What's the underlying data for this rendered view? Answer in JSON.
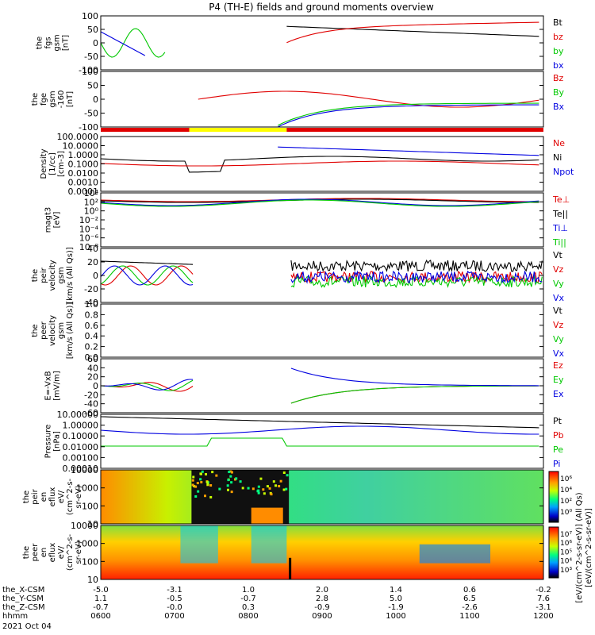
{
  "title": "P4 (TH-E) fields and ground moments overview",
  "colors": {
    "black": "#000000",
    "red": "#e00000",
    "green": "#00c800",
    "blue": "#0000e0",
    "yellow": "#ffff00"
  },
  "panels": [
    {
      "ylabel": [
        "the",
        "fgs",
        "gsm",
        "[nT]"
      ],
      "ticks": [
        "100",
        "50",
        "0",
        "-50",
        "-100"
      ],
      "legend": [
        "Bt",
        "bz",
        "by",
        "bx"
      ],
      "lc": [
        "black",
        "red",
        "green",
        "blue"
      ]
    },
    {
      "ylabel": [
        "the",
        "fge",
        "gsm",
        "-160",
        "[nT]"
      ],
      "ticks": [
        "100",
        "50",
        "0",
        "-50",
        "-100"
      ],
      "legend": [
        "Bz",
        "By",
        "Bx"
      ],
      "lc": [
        "red",
        "green",
        "blue"
      ]
    },
    {
      "ylabel": [
        "Density",
        "[1/cc]",
        "[cm-3]"
      ],
      "ticks": [
        "100.0000",
        "10.0000",
        "1.0000",
        "0.1000",
        "0.0100",
        "0.0010",
        "0.0001"
      ],
      "legend": [
        "Ne",
        "Ni",
        "Npot"
      ],
      "lc": [
        "red",
        "black",
        "blue"
      ]
    },
    {
      "ylabel": [
        "magt3",
        "[eV]"
      ],
      "ticks": [
        "10⁴",
        "10²",
        "10⁰",
        "10⁻²",
        "10⁻⁴",
        "10⁻⁶",
        "10⁻⁸"
      ],
      "legend": [
        "Te⊥",
        "Te||",
        "Ti⊥",
        "Ti||"
      ],
      "lc": [
        "red",
        "black",
        "blue",
        "green"
      ]
    },
    {
      "ylabel": [
        "the",
        "peir",
        "velocity",
        "gsm",
        "[km/s (All Qs)]"
      ],
      "ticks": [
        "40",
        "20",
        "0",
        "-20",
        "-40"
      ],
      "legend": [
        "Vt",
        "Vz",
        "Vy",
        "Vx"
      ],
      "lc": [
        "black",
        "red",
        "green",
        "blue"
      ]
    },
    {
      "ylabel": [
        "the",
        "peer",
        "velocity",
        "gsm",
        "[km/s (All Qs)]"
      ],
      "ticks": [
        "1.0",
        "0.8",
        "0.6",
        "0.4",
        "0.2",
        "0.0"
      ],
      "legend": [
        "Vt",
        "Vz",
        "Vy",
        "Vx"
      ],
      "lc": [
        "black",
        "red",
        "green",
        "blue"
      ]
    },
    {
      "ylabel": [
        "E=-VxB",
        "[mV/m]"
      ],
      "ticks": [
        "60",
        "40",
        "20",
        "0",
        "-20",
        "-40",
        "-60"
      ],
      "legend": [
        "Ez",
        "Ey",
        "Ex"
      ],
      "lc": [
        "red",
        "green",
        "blue"
      ]
    },
    {
      "ylabel": [
        "Pressure",
        "[nPa]"
      ],
      "ticks": [
        "10.00000",
        "1.00000",
        "0.10000",
        "0.01000",
        "0.00100",
        "0.00010"
      ],
      "legend": [
        "Pt",
        "Pb",
        "Pe",
        "Pi"
      ],
      "lc": [
        "black",
        "red",
        "green",
        "blue"
      ]
    },
    {
      "ylabel": [
        "the",
        "peir",
        "en",
        "eflux",
        "eV/",
        "(cm^2-s-",
        "sr-eV)"
      ],
      "ticks": [
        "10000",
        "1000",
        "100",
        "10"
      ]
    },
    {
      "ylabel": [
        "the",
        "peer",
        "en",
        "eflux",
        "eV/",
        "(cm^2-s-",
        "sr-eV)"
      ],
      "ticks": [
        "10000",
        "1000",
        "100",
        "10"
      ]
    }
  ],
  "colorbar_ticks_ion": [
    "10⁶",
    "10⁴",
    "10²",
    "10⁰"
  ],
  "colorbar_ticks_ele": [
    "10⁷",
    "10⁶",
    "10⁵",
    "10⁴",
    "10³"
  ],
  "colorbar_label_ion": "[eV/(cm^2-s-sr-eV)] (All Qs)",
  "colorbar_label_ele": "[eV/(cm^2-s-sr-eV)]",
  "xaxis": {
    "row_labels": [
      "the_X-CSM",
      "the_Y-CSM",
      "the_Z-CSM",
      "hhmm",
      "2021 Oct 04"
    ],
    "x_csm": [
      "-5.0",
      "-3.1",
      "1.0",
      "2.0",
      "1.4",
      "0.6",
      "-0.2"
    ],
    "y_csm": [
      "1.1",
      "-0.5",
      "-0.7",
      "2.8",
      "5.0",
      "6.5",
      "7.6"
    ],
    "z_csm": [
      "-0.7",
      "-0.0",
      "0.3",
      "-0.9",
      "-1.9",
      "-2.6",
      "-3.1"
    ],
    "hhmm": [
      "0600",
      "0700",
      "0800",
      "0900",
      "1000",
      "1100",
      "1200"
    ]
  },
  "chart_data": {
    "type": "line",
    "x": [
      "0600",
      "0700",
      "0800",
      "0900",
      "1000",
      "1100",
      "1200"
    ],
    "xlabel": "hhmm",
    "date": "2021 Oct 04",
    "panels": [
      {
        "ylim": [
          -100,
          100
        ],
        "series": [
          {
            "name": "Bt"
          },
          {
            "name": "bz"
          },
          {
            "name": "by"
          },
          {
            "name": "bx"
          }
        ]
      },
      {
        "ylim": [
          -100,
          100
        ],
        "series": [
          {
            "name": "Bz"
          },
          {
            "name": "By"
          },
          {
            "name": "Bx"
          }
        ]
      },
      {
        "ylim": [
          0.0001,
          100
        ],
        "scale": "log",
        "series": [
          {
            "name": "Ne"
          },
          {
            "name": "Ni"
          },
          {
            "name": "Npot"
          }
        ]
      },
      {
        "ylim": [
          1e-08,
          10000.0
        ],
        "scale": "log",
        "series": [
          {
            "name": "Te⊥"
          },
          {
            "name": "Te||"
          },
          {
            "name": "Ti⊥"
          },
          {
            "name": "Ti||"
          }
        ]
      },
      {
        "ylim": [
          -40,
          40
        ],
        "series": [
          {
            "name": "Vt"
          },
          {
            "name": "Vz"
          },
          {
            "name": "Vy"
          },
          {
            "name": "Vx"
          }
        ]
      },
      {
        "ylim": [
          0,
          1
        ],
        "series": [
          {
            "name": "Vt"
          },
          {
            "name": "Vz"
          },
          {
            "name": "Vy"
          },
          {
            "name": "Vx"
          }
        ]
      },
      {
        "ylim": [
          -60,
          60
        ],
        "series": [
          {
            "name": "Ez"
          },
          {
            "name": "Ey"
          },
          {
            "name": "Ex"
          }
        ]
      },
      {
        "ylim": [
          0.0001,
          10
        ],
        "scale": "log",
        "series": [
          {
            "name": "Pt"
          },
          {
            "name": "Pb"
          },
          {
            "name": "Pe"
          },
          {
            "name": "Pi"
          }
        ]
      },
      {
        "type": "heatmap",
        "ylim": [
          10,
          10000
        ],
        "scale": "log"
      },
      {
        "type": "heatmap",
        "ylim": [
          10,
          10000
        ],
        "scale": "log"
      }
    ]
  }
}
